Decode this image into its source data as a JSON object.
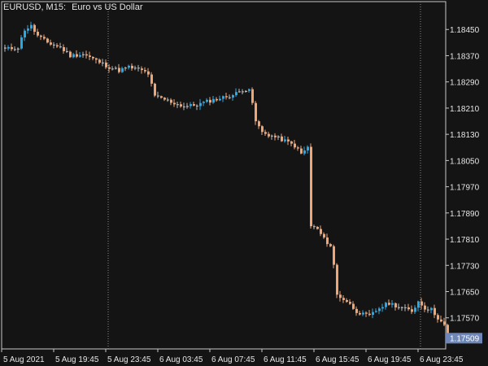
{
  "header": {
    "symbol_timeframe": "EURUSD, M15:",
    "description": "Euro vs US Dollar"
  },
  "colors": {
    "background": "#141414",
    "axis": "#c8c8c8",
    "text": "#e6e6e6",
    "bull": "#29a8e8",
    "bear": "#f0a674",
    "neutral": "#bdbdbd",
    "separator": "#8a8a8a",
    "price_tag_bg": "#6e86b8",
    "price_tag_text": "#ffffff"
  },
  "chart_data": {
    "type": "candlestick",
    "ylim": [
      1.17475,
      1.18535
    ],
    "y_ticks": [
      "1.18450",
      "1.18370",
      "1.18290",
      "1.18210",
      "1.18130",
      "1.18050",
      "1.17970",
      "1.17890",
      "1.17810",
      "1.17730",
      "1.17650",
      "1.17570"
    ],
    "x_ticks": [
      "5 Aug 2021",
      "5 Aug 19:45",
      "5 Aug 23:45",
      "6 Aug 03:45",
      "6 Aug 07:45",
      "6 Aug 11:45",
      "6 Aug 15:45",
      "6 Aug 19:45",
      "6 Aug 23:45"
    ],
    "current_price": "1.17509",
    "separator_times": [
      "5 Aug 23:45",
      "6 Aug 23:45"
    ],
    "close_trace": [
      [
        0,
        1.1839
      ],
      [
        4,
        1.18395
      ],
      [
        6,
        1.1845
      ],
      [
        8,
        1.1846
      ],
      [
        10,
        1.1843
      ],
      [
        13,
        1.1841
      ],
      [
        17,
        1.18395
      ],
      [
        20,
        1.1837
      ],
      [
        24,
        1.18375
      ],
      [
        28,
        1.18355
      ],
      [
        32,
        1.18335
      ],
      [
        35,
        1.18325
      ],
      [
        38,
        1.18335
      ],
      [
        42,
        1.18325
      ],
      [
        44,
        1.18315
      ],
      [
        46,
        1.18245
      ],
      [
        48,
        1.1824
      ],
      [
        52,
        1.18225
      ],
      [
        55,
        1.18215
      ],
      [
        59,
        1.1822
      ],
      [
        62,
        1.1823
      ],
      [
        66,
        1.1824
      ],
      [
        70,
        1.1825
      ],
      [
        73,
        1.18265
      ],
      [
        75,
        1.1827
      ],
      [
        77,
        1.1817
      ],
      [
        79,
        1.18135
      ],
      [
        82,
        1.18125
      ],
      [
        86,
        1.1811
      ],
      [
        89,
        1.18095
      ],
      [
        91,
        1.1807
      ],
      [
        93,
        1.1809
      ],
      [
        94,
        1.1785
      ],
      [
        96,
        1.1784
      ],
      [
        98,
        1.1781
      ],
      [
        100,
        1.1779
      ],
      [
        101,
        1.1773
      ],
      [
        102,
        1.1764
      ],
      [
        105,
        1.1762
      ],
      [
        108,
        1.1759
      ],
      [
        110,
        1.1758
      ],
      [
        112,
        1.17575
      ],
      [
        115,
        1.176
      ],
      [
        118,
        1.17615
      ],
      [
        122,
        1.176
      ],
      [
        125,
        1.1759
      ],
      [
        127,
        1.1762
      ],
      [
        129,
        1.176
      ],
      [
        131,
        1.17595
      ],
      [
        133,
        1.1757
      ],
      [
        135,
        1.17545
      ],
      [
        136,
        1.17509
      ]
    ]
  }
}
